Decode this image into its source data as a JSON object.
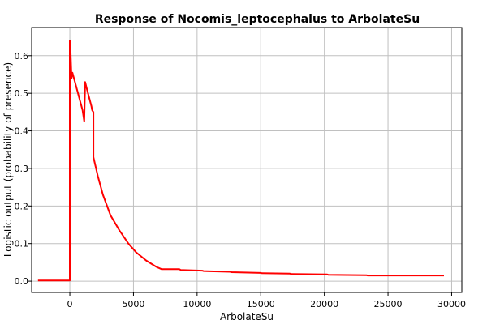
{
  "chart_data": {
    "type": "line",
    "title": "Response of Nocomis_leptocephalus to ArbolateSu",
    "xlabel": "ArbolateSu",
    "ylabel": "Logistic output (probability of presence)",
    "xlim": [
      -3000,
      30800
    ],
    "ylim": [
      -0.03,
      0.675
    ],
    "xticks": [
      0,
      5000,
      10000,
      15000,
      20000,
      25000,
      30000
    ],
    "yticks": [
      0.0,
      0.1,
      0.2,
      0.3,
      0.4,
      0.5,
      0.6
    ],
    "xtick_labels": [
      "0",
      "5000",
      "10000",
      "15000",
      "20000",
      "25000",
      "30000"
    ],
    "ytick_labels": [
      "0.0",
      "0.1",
      "0.2",
      "0.3",
      "0.4",
      "0.5",
      "0.6"
    ],
    "grid": true,
    "series": [
      {
        "color": "#ff0000",
        "x": [
          -2500,
          0,
          0,
          50,
          130,
          200,
          320,
          1000,
          1130,
          1200,
          1350,
          1700,
          1750,
          1850,
          1850,
          2200,
          2600,
          3200,
          3900,
          4600,
          5200,
          6000,
          6800,
          7200,
          8600,
          8700,
          10400,
          10500,
          12600,
          12700,
          15000,
          15100,
          17300,
          17400,
          20200,
          20300,
          23300,
          23400,
          25000,
          29400
        ],
        "y": [
          0.002,
          0.002,
          0.64,
          0.62,
          0.54,
          0.555,
          0.54,
          0.455,
          0.425,
          0.53,
          0.51,
          0.465,
          0.455,
          0.45,
          0.33,
          0.28,
          0.23,
          0.175,
          0.135,
          0.1,
          0.077,
          0.055,
          0.038,
          0.032,
          0.032,
          0.03,
          0.028,
          0.027,
          0.025,
          0.024,
          0.022,
          0.021,
          0.02,
          0.019,
          0.018,
          0.017,
          0.016,
          0.015,
          0.015,
          0.015
        ]
      }
    ]
  }
}
